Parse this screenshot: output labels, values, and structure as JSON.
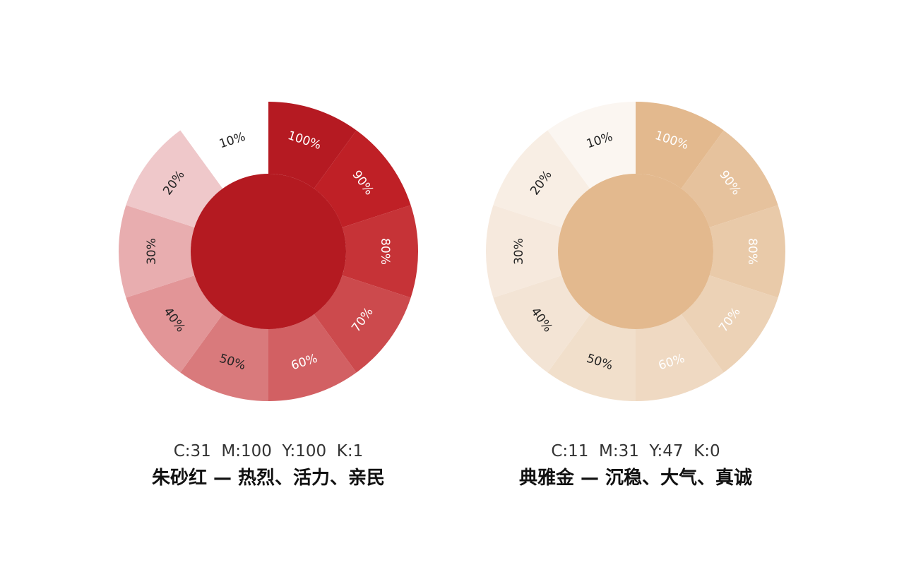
{
  "wheels": [
    {
      "id": "cinnabar",
      "cmyk": "C:31  M:100  Y:100  K:1",
      "title": "朱砂红 — 热烈、活力、亲民",
      "center_color": "#b41a21",
      "segments": [
        {
          "label": "100%",
          "color": "#b51a22",
          "text_color": "#ffffff"
        },
        {
          "label": "90%",
          "color": "#bf2026",
          "text_color": "#ffffff"
        },
        {
          "label": "80%",
          "color": "#c63337",
          "text_color": "#ffffff"
        },
        {
          "label": "70%",
          "color": "#cc4a4d",
          "text_color": "#ffffff"
        },
        {
          "label": "60%",
          "color": "#d26063",
          "text_color": "#ffffff"
        },
        {
          "label": "50%",
          "color": "#d97a7c",
          "text_color": "#222222"
        },
        {
          "label": "40%",
          "color": "#e29597",
          "text_color": "#222222"
        },
        {
          "label": "30%",
          "color": "#e8adaf",
          "text_color": "#222222"
        },
        {
          "label": "20%",
          "color": "#efc8ca",
          "text_color": "#222222"
        },
        {
          "label": "10%",
          "color": "#ffffff",
          "text_color": "#222222"
        }
      ]
    },
    {
      "id": "elegant-gold",
      "cmyk": "C:11  M:31  Y:47  K:0",
      "title": "典雅金 — 沉稳、大气、真诚",
      "center_color": "#e3b98e",
      "segments": [
        {
          "label": "100%",
          "color": "#e3b98e",
          "text_color": "#ffffff"
        },
        {
          "label": "90%",
          "color": "#e6c29d",
          "text_color": "#ffffff"
        },
        {
          "label": "80%",
          "color": "#e9caa9",
          "text_color": "#ffffff"
        },
        {
          "label": "70%",
          "color": "#ecd2b6",
          "text_color": "#ffffff"
        },
        {
          "label": "60%",
          "color": "#efd9c2",
          "text_color": "#ffffff"
        },
        {
          "label": "50%",
          "color": "#f1dfcb",
          "text_color": "#222222"
        },
        {
          "label": "40%",
          "color": "#f3e4d5",
          "text_color": "#222222"
        },
        {
          "label": "30%",
          "color": "#f6e9dd",
          "text_color": "#222222"
        },
        {
          "label": "20%",
          "color": "#f8eee4",
          "text_color": "#222222"
        },
        {
          "label": "10%",
          "color": "#fbf6f1",
          "text_color": "#222222"
        }
      ]
    }
  ]
}
